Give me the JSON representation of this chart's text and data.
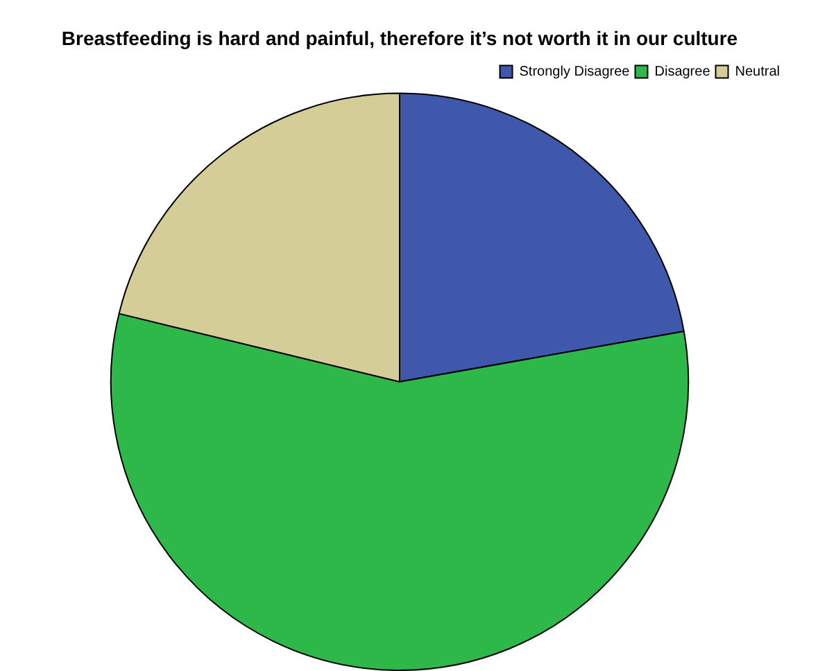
{
  "chart_data": {
    "type": "pie",
    "title": "Breastfeeding is hard and painful, therefore it’s not worth it in our culture",
    "categories": [
      "Strongly Disagree",
      "Disagree",
      "Neutral"
    ],
    "values": [
      22.2,
      56.6,
      21.2
    ],
    "colors": [
      "#3f58ab",
      "#2fb84a",
      "#d4cd98"
    ],
    "legend": "top right"
  }
}
